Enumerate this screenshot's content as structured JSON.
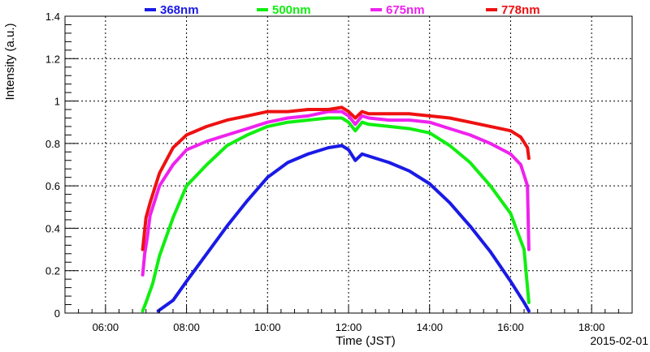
{
  "chart_data": {
    "type": "line",
    "xlabel": "Time (JST)",
    "ylabel": "Intensity (a.u.)",
    "date": "2015-02-01",
    "xlim": [
      "05:00",
      "19:00"
    ],
    "ylim": [
      0,
      1.4
    ],
    "x_ticks": [
      "06:00",
      "08:00",
      "10:00",
      "12:00",
      "14:00",
      "16:00",
      "18:00"
    ],
    "y_ticks": [
      "0",
      "0.2",
      "0.4",
      "0.6",
      "0.8",
      "1",
      "1.2",
      "1.4"
    ],
    "grid": true,
    "legend_position": "top",
    "series": [
      {
        "name": "368nm",
        "color": "#1a1ae6",
        "x": [
          "07:18",
          "07:40",
          "08:00",
          "08:30",
          "09:00",
          "09:30",
          "10:00",
          "10:30",
          "11:00",
          "11:30",
          "11:50",
          "12:00",
          "12:10",
          "12:20",
          "12:30",
          "13:00",
          "13:30",
          "14:00",
          "14:30",
          "15:00",
          "15:30",
          "16:00",
          "16:20",
          "16:27"
        ],
        "values": [
          0.01,
          0.06,
          0.15,
          0.28,
          0.41,
          0.53,
          0.64,
          0.71,
          0.75,
          0.78,
          0.79,
          0.77,
          0.72,
          0.75,
          0.74,
          0.71,
          0.67,
          0.61,
          0.52,
          0.41,
          0.29,
          0.15,
          0.05,
          0.01
        ]
      },
      {
        "name": "500nm",
        "color": "#11ee11",
        "x": [
          "06:55",
          "07:00",
          "07:10",
          "07:20",
          "07:40",
          "08:00",
          "08:30",
          "09:00",
          "09:30",
          "10:00",
          "10:30",
          "11:00",
          "11:30",
          "11:50",
          "12:00",
          "12:10",
          "12:20",
          "12:30",
          "13:00",
          "13:30",
          "14:00",
          "14:30",
          "15:00",
          "15:30",
          "16:00",
          "16:20",
          "16:27"
        ],
        "values": [
          0.01,
          0.05,
          0.14,
          0.27,
          0.45,
          0.6,
          0.7,
          0.79,
          0.84,
          0.88,
          0.9,
          0.91,
          0.92,
          0.92,
          0.9,
          0.86,
          0.9,
          0.89,
          0.88,
          0.87,
          0.85,
          0.79,
          0.71,
          0.6,
          0.47,
          0.3,
          0.05
        ]
      },
      {
        "name": "675nm",
        "color": "#ee22ee",
        "x": [
          "06:55",
          "06:58",
          "07:02",
          "07:06",
          "07:12",
          "07:20",
          "07:40",
          "08:00",
          "08:30",
          "09:00",
          "09:30",
          "10:00",
          "10:30",
          "11:00",
          "11:30",
          "11:50",
          "12:00",
          "12:10",
          "12:20",
          "12:30",
          "13:00",
          "13:30",
          "14:00",
          "14:30",
          "15:00",
          "15:30",
          "16:00",
          "16:15",
          "16:25",
          "16:27"
        ],
        "values": [
          0.18,
          0.28,
          0.36,
          0.46,
          0.52,
          0.6,
          0.7,
          0.77,
          0.81,
          0.84,
          0.87,
          0.9,
          0.92,
          0.93,
          0.95,
          0.95,
          0.93,
          0.89,
          0.93,
          0.92,
          0.91,
          0.91,
          0.9,
          0.87,
          0.84,
          0.8,
          0.75,
          0.7,
          0.6,
          0.3
        ]
      },
      {
        "name": "778nm",
        "color": "#ee1111",
        "x": [
          "06:55",
          "07:00",
          "07:06",
          "07:14",
          "07:20",
          "07:30",
          "07:40",
          "08:00",
          "08:30",
          "09:00",
          "09:30",
          "10:00",
          "10:30",
          "11:00",
          "11:30",
          "11:50",
          "12:00",
          "12:10",
          "12:20",
          "12:30",
          "13:00",
          "13:30",
          "14:00",
          "14:30",
          "15:00",
          "15:30",
          "16:00",
          "16:15",
          "16:25",
          "16:27"
        ],
        "values": [
          0.3,
          0.45,
          0.52,
          0.6,
          0.66,
          0.72,
          0.78,
          0.84,
          0.88,
          0.91,
          0.93,
          0.95,
          0.95,
          0.96,
          0.96,
          0.97,
          0.95,
          0.92,
          0.95,
          0.94,
          0.94,
          0.94,
          0.93,
          0.92,
          0.9,
          0.88,
          0.86,
          0.83,
          0.78,
          0.73
        ]
      }
    ]
  }
}
